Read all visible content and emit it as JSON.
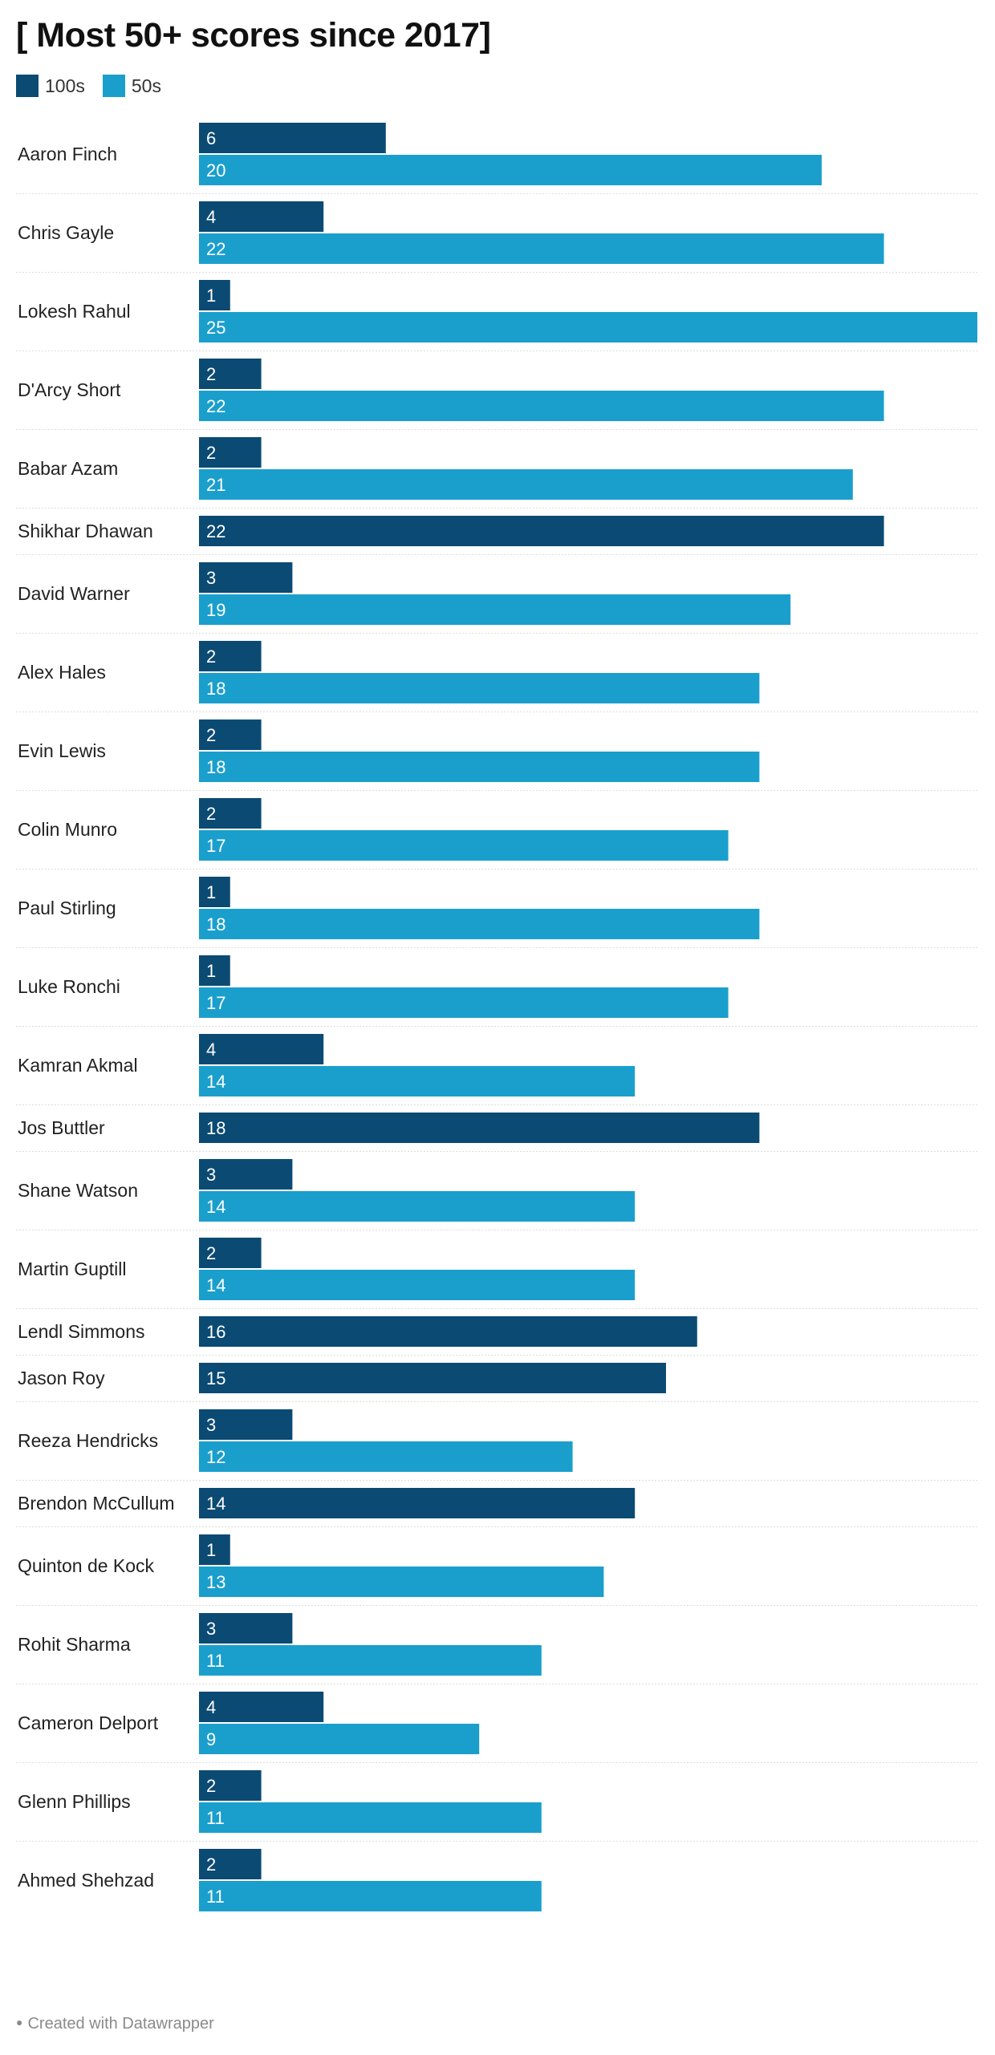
{
  "title": "[ Most 50+ scores since 2017]",
  "colors": {
    "hundreds": "#0b4a73",
    "fifties": "#1a9fcd",
    "separator": "#dddddd",
    "background": "#ffffff"
  },
  "legend": [
    {
      "label": "100s",
      "color": "#0b4a73"
    },
    {
      "label": "50s",
      "color": "#1a9fcd"
    }
  ],
  "footer": "Created with Datawrapper",
  "chart_data": {
    "type": "bar",
    "orientation": "horizontal",
    "title": "[ Most 50+ scores since 2017]",
    "xlim": [
      0,
      25
    ],
    "grid": false,
    "legend_position": "top-left",
    "categories": [
      "Aaron Finch",
      "Chris Gayle",
      "Lokesh Rahul",
      "D'Arcy Short",
      "Babar Azam",
      "Shikhar Dhawan",
      "David Warner",
      "Alex Hales",
      "Evin Lewis",
      "Colin Munro",
      "Paul Stirling",
      "Luke Ronchi",
      "Kamran Akmal",
      "Jos Buttler",
      "Shane Watson",
      "Martin Guptill",
      "Lendl Simmons",
      "Jason Roy",
      "Reeza Hendricks",
      "Brendon McCullum",
      "Quinton de Kock",
      "Rohit Sharma",
      "Cameron Delport",
      "Glenn Phillips",
      "Ahmed Shehzad"
    ],
    "series": [
      {
        "name": "100s",
        "values": [
          6,
          4,
          1,
          2,
          2,
          22,
          3,
          2,
          2,
          2,
          1,
          1,
          4,
          18,
          3,
          2,
          16,
          15,
          3,
          14,
          1,
          3,
          4,
          2,
          2
        ]
      },
      {
        "name": "50s",
        "values": [
          20,
          22,
          25,
          22,
          21,
          null,
          19,
          18,
          18,
          17,
          18,
          17,
          14,
          null,
          14,
          14,
          null,
          null,
          12,
          null,
          13,
          11,
          9,
          11,
          11
        ]
      }
    ]
  }
}
